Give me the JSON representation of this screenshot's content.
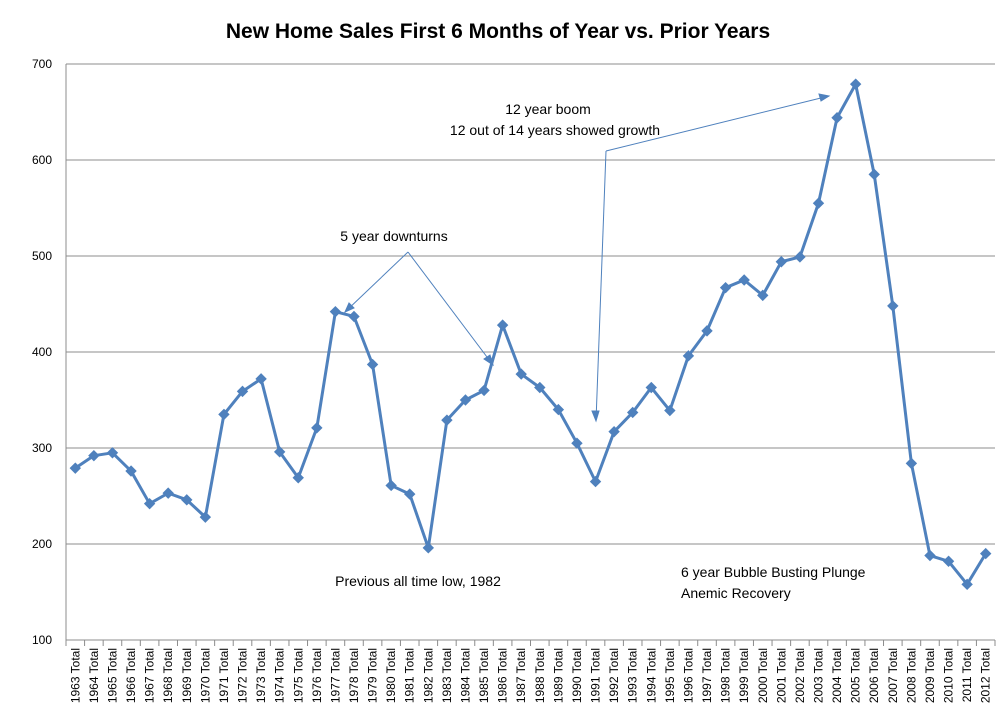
{
  "chart_data": {
    "type": "line",
    "title": "New Home Sales First 6 Months of Year vs. Prior Years",
    "xlabel": "",
    "ylabel": "",
    "ylim": [
      100,
      700
    ],
    "yticks": [
      100,
      200,
      300,
      400,
      500,
      600,
      700
    ],
    "grid": true,
    "legend": "none",
    "series_color": "#4f81bd",
    "categories": [
      "1963 Total",
      "1964 Total",
      "1965 Total",
      "1966 Total",
      "1967 Total",
      "1968 Total",
      "1969 Total",
      "1970 Total",
      "1971 Total",
      "1972 Total",
      "1973 Total",
      "1974 Total",
      "1975 Total",
      "1976 Total",
      "1977 Total",
      "1978 Total",
      "1979 Total",
      "1980 Total",
      "1981 Total",
      "1982 Total",
      "1983 Total",
      "1984 Total",
      "1985 Total",
      "1986 Total",
      "1987 Total",
      "1988 Total",
      "1989 Total",
      "1990 Total",
      "1991 Total",
      "1992 Total",
      "1993 Total",
      "1994 Total",
      "1995 Total",
      "1996 Total",
      "1997 Total",
      "1998 Total",
      "1999 Total",
      "2000 Total",
      "2001 Total",
      "2002 Total",
      "2003 Total",
      "2004 Total",
      "2005 Total",
      "2006 Total",
      "2007 Total",
      "2008 Total",
      "2009 Total",
      "2010 Total",
      "2011 Total",
      "2012 Total"
    ],
    "series": [
      {
        "values": [
          279,
          292,
          295,
          276,
          242,
          253,
          246,
          228,
          335,
          359,
          372,
          296,
          269,
          321,
          442,
          437,
          387,
          261,
          252,
          196,
          329,
          350,
          360,
          428,
          377,
          363,
          340,
          305,
          265,
          317,
          337,
          363,
          339,
          396,
          422,
          467,
          475,
          459,
          494,
          499,
          555,
          644,
          679,
          585,
          448,
          284,
          188,
          182,
          158,
          190
        ]
      }
    ],
    "annotations": [
      {
        "text": "12 year boom",
        "points_to": [
          "1991 Total",
          "2005 Total"
        ]
      },
      {
        "text": "12 out of 14 years showed growth"
      },
      {
        "text": "5 year downturns",
        "points_to": [
          "1977 Total",
          "1985 Total"
        ]
      },
      {
        "text": "Previous all time low, 1982"
      },
      {
        "text": "6 year Bubble  Busting Plunge"
      },
      {
        "text": "Anemic Recovery"
      }
    ]
  }
}
